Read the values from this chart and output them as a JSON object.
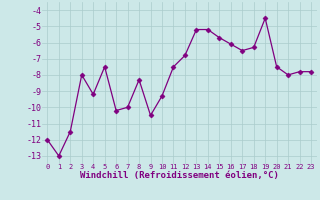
{
  "x": [
    0,
    1,
    2,
    3,
    4,
    5,
    6,
    7,
    8,
    9,
    10,
    11,
    12,
    13,
    14,
    15,
    16,
    17,
    18,
    19,
    20,
    21,
    22,
    23
  ],
  "y": [
    -12.0,
    -13.0,
    -11.5,
    -8.0,
    -9.2,
    -7.5,
    -10.2,
    -10.0,
    -8.3,
    -10.5,
    -9.3,
    -7.5,
    -6.8,
    -5.2,
    -5.2,
    -5.7,
    -6.1,
    -6.5,
    -6.3,
    -4.5,
    -7.5,
    -8.0,
    -7.8,
    -7.8
  ],
  "line_color": "#800080",
  "marker": "D",
  "marker_size": 2.5,
  "bg_color": "#cce8e8",
  "grid_color": "#aacccc",
  "xlabel": "Windchill (Refroidissement éolien,°C)",
  "xlabel_color": "#800080",
  "tick_color": "#800080",
  "ylim": [
    -13.5,
    -3.5
  ],
  "xlim": [
    -0.5,
    23.5
  ],
  "yticks": [
    -13,
    -12,
    -11,
    -10,
    -9,
    -8,
    -7,
    -6,
    -5,
    -4
  ],
  "xticks": [
    0,
    1,
    2,
    3,
    4,
    5,
    6,
    7,
    8,
    9,
    10,
    11,
    12,
    13,
    14,
    15,
    16,
    17,
    18,
    19,
    20,
    21,
    22,
    23
  ],
  "xlabel_fontsize": 6.5,
  "xtick_fontsize": 5.0,
  "ytick_fontsize": 6.0
}
